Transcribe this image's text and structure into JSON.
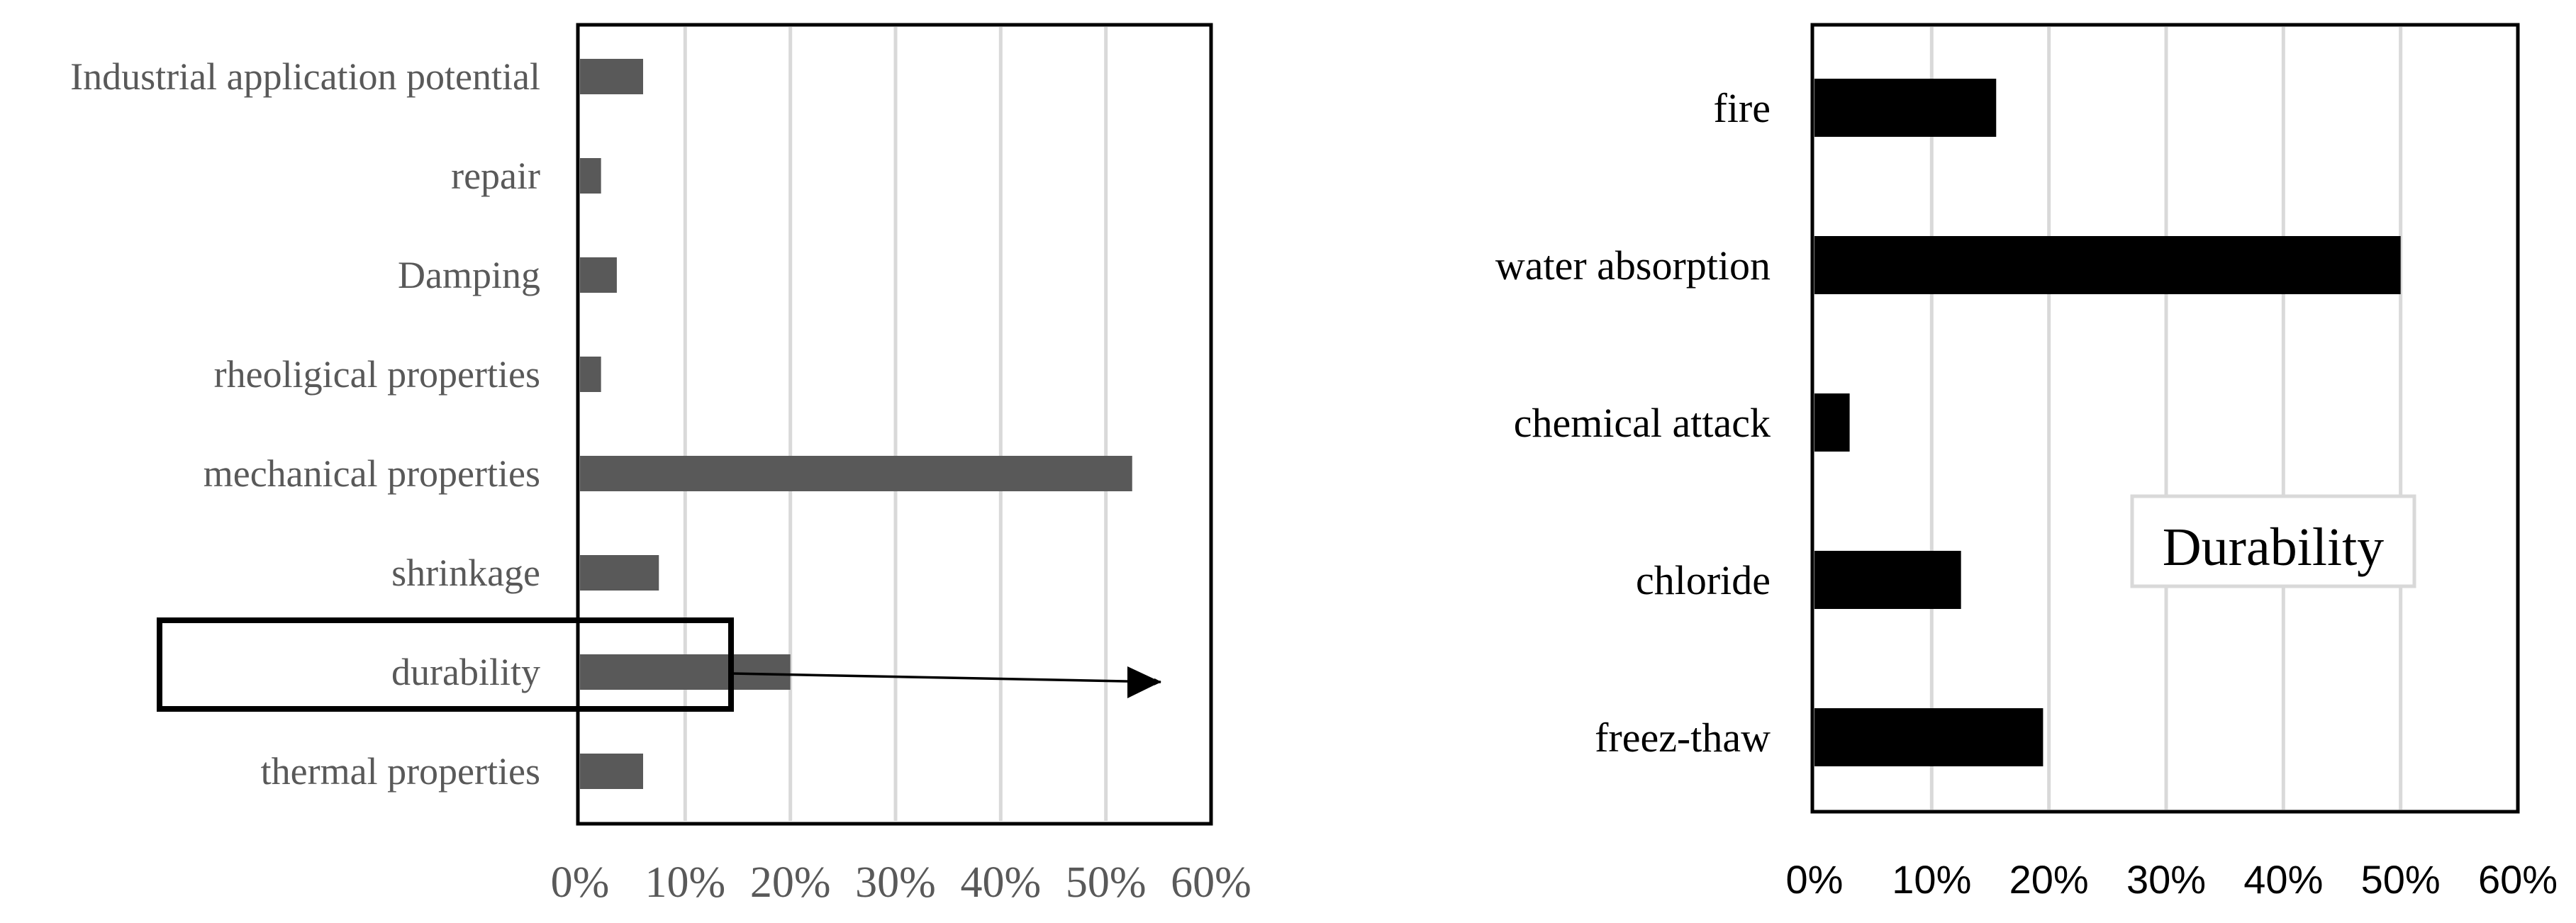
{
  "chart_data": [
    {
      "type": "bar",
      "orientation": "horizontal",
      "categories": [
        "Industrial application potential",
        "repair",
        "Damping",
        "rheoligical properties",
        "mechanical properties",
        "shrinkage",
        "durability",
        "thermal properties"
      ],
      "values": [
        6,
        2,
        3.5,
        2,
        52.5,
        7.5,
        20,
        6
      ],
      "xlim": [
        0,
        60
      ],
      "xticks": [
        "0%",
        "10%",
        "20%",
        "30%",
        "40%",
        "50%",
        "60%"
      ],
      "grid": true,
      "bar_color": "#595959",
      "highlight": {
        "category": "durability",
        "arrow_to": "right-panel"
      }
    },
    {
      "type": "bar",
      "orientation": "horizontal",
      "categories": [
        "fire",
        "water absorption",
        "chemical attack",
        "chloride",
        "freez-thaw"
      ],
      "values": [
        15.5,
        50,
        3,
        12.5,
        19.5
      ],
      "xlim": [
        0,
        60
      ],
      "xticks": [
        "0%",
        "10%",
        "20%",
        "30%",
        "40%",
        "50%",
        "60%"
      ],
      "grid": true,
      "bar_color": "#000000",
      "annotation": "Durability"
    }
  ]
}
